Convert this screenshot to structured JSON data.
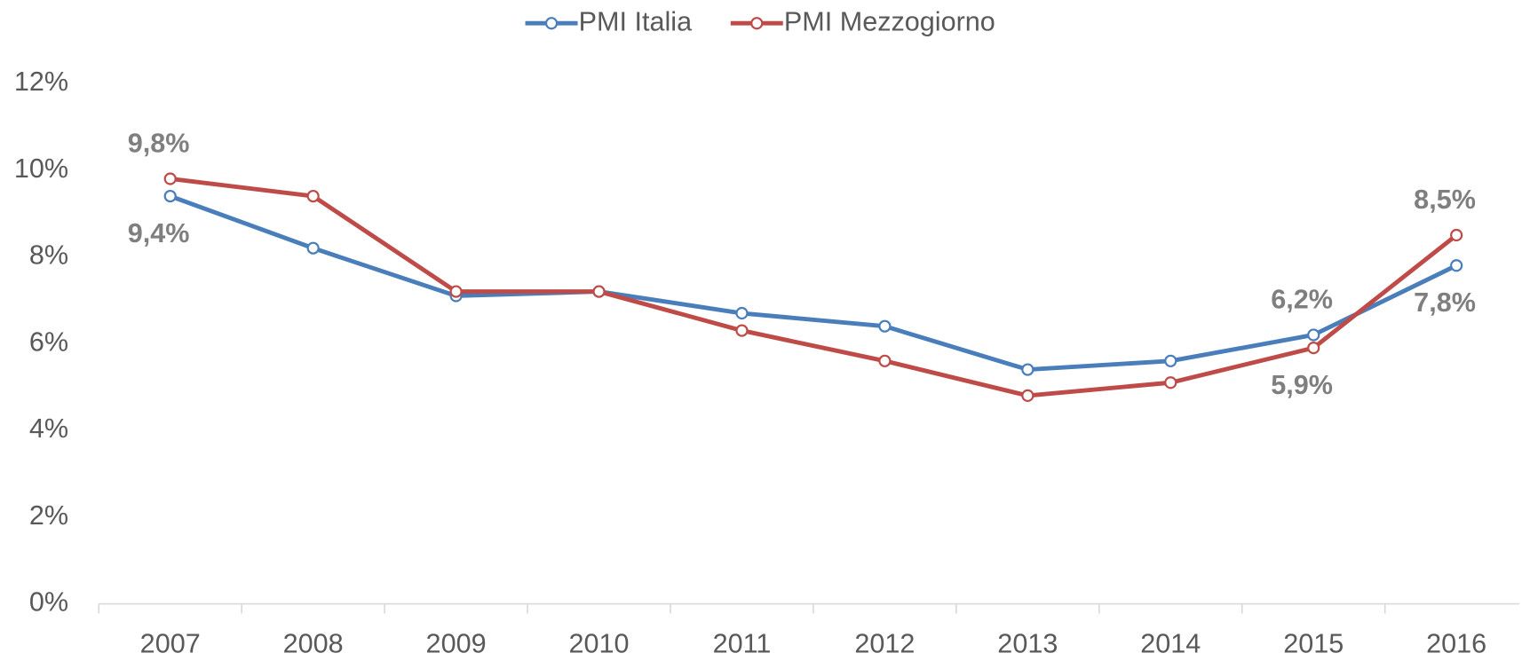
{
  "chart_data": {
    "type": "line",
    "categories": [
      "2007",
      "2008",
      "2009",
      "2010",
      "2011",
      "2012",
      "2013",
      "2014",
      "2015",
      "2016"
    ],
    "series": [
      {
        "name": "PMI Italia",
        "color": "#4a7ebb",
        "values": [
          9.4,
          8.2,
          7.1,
          7.2,
          6.7,
          6.4,
          5.4,
          5.6,
          6.2,
          7.8
        ],
        "value_labels": [
          "9,4%",
          null,
          null,
          null,
          null,
          null,
          null,
          null,
          "6,2%",
          "7,8%"
        ]
      },
      {
        "name": "PMI Mezzogiorno",
        "color": "#be4b48",
        "values": [
          9.8,
          9.4,
          7.2,
          7.2,
          6.3,
          5.6,
          4.8,
          5.1,
          5.9,
          8.5
        ],
        "value_labels": [
          "9,8%",
          null,
          null,
          null,
          null,
          null,
          null,
          null,
          "5,9%",
          "8,5%"
        ]
      }
    ],
    "ylim": [
      0,
      12
    ],
    "yticks": [
      {
        "value": 0,
        "label": "0%"
      },
      {
        "value": 2,
        "label": "2%"
      },
      {
        "value": 4,
        "label": "4%"
      },
      {
        "value": 6,
        "label": "6%"
      },
      {
        "value": 8,
        "label": "8%"
      },
      {
        "value": 10,
        "label": "10%"
      },
      {
        "value": 12,
        "label": "12%"
      }
    ],
    "legend": "top"
  }
}
